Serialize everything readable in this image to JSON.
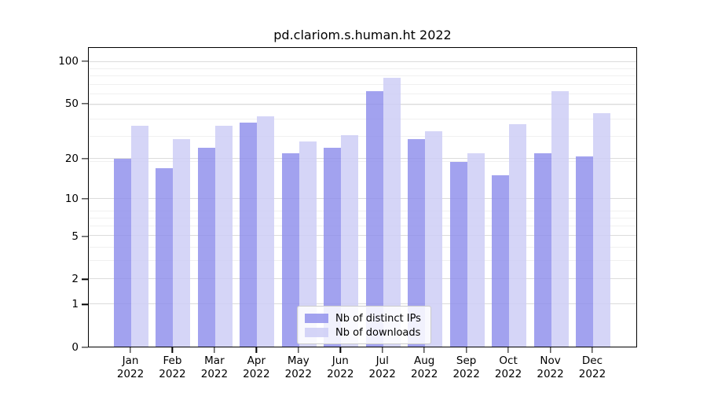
{
  "title": "pd.clariom.s.human.ht 2022",
  "chart_data": {
    "type": "bar",
    "title": "pd.clariom.s.human.ht 2022",
    "xlabel": "",
    "ylabel": "",
    "year": "2022",
    "categories": [
      "Jan",
      "Feb",
      "Mar",
      "Apr",
      "May",
      "Jun",
      "Jul",
      "Aug",
      "Sep",
      "Oct",
      "Nov",
      "Dec"
    ],
    "series": [
      {
        "name": "Nb of distinct IPs",
        "color": "rgba(141,141,236,0.82)",
        "values": [
          20,
          17,
          24,
          37,
          22,
          24,
          62,
          28,
          19,
          15,
          22,
          21
        ]
      },
      {
        "name": "Nb of downloads",
        "color": "rgba(206,206,246,0.85)",
        "values": [
          35,
          28,
          35,
          41,
          27,
          30,
          77,
          32,
          22,
          36,
          62,
          43
        ]
      }
    ],
    "y_scale": "log10(value+1)",
    "y_ticks": [
      0,
      1,
      2,
      5,
      10,
      20,
      50,
      100
    ],
    "y_minor_ticks": [
      3,
      4,
      6,
      7,
      8,
      19,
      29,
      39,
      49,
      59,
      69,
      79,
      89
    ],
    "y_axis_log_max": 2.1035,
    "grid": true,
    "legend_position": "lower center",
    "colors": {
      "distinct_ips": "#a3a3ee",
      "downloads": "#d6d6f7",
      "grid_major": "#dcdcdc",
      "grid_minor": "#f0f0f0",
      "axis": "#000000"
    }
  }
}
